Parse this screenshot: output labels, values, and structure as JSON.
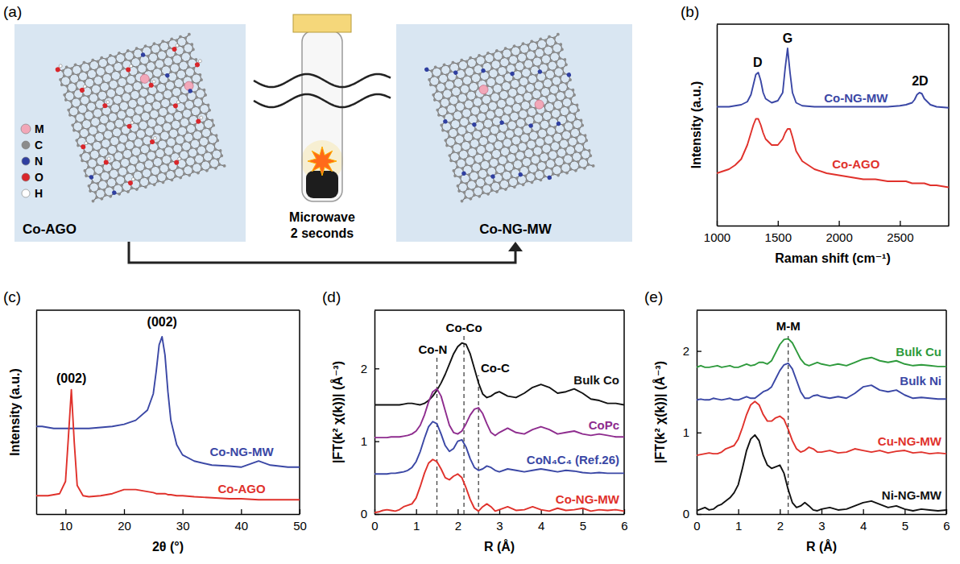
{
  "diagram": {
    "panel_label": "(a)",
    "before": "Co-AGO",
    "after": "Co-NG-MW",
    "process": [
      "Microwave",
      "2 seconds"
    ],
    "legend": [
      {
        "label": "M",
        "color": "#f2a7b8"
      },
      {
        "label": "C",
        "color": "#8c8c8c"
      },
      {
        "label": "N",
        "color": "#2f3fa0"
      },
      {
        "label": "O",
        "color": "#d9262b"
      },
      {
        "label": "H",
        "color": "#ffffff"
      }
    ]
  },
  "chart_data": [
    {
      "type": "line",
      "panel_label": "(b)",
      "xlabel": "Raman shift (cm⁻¹)",
      "ylabel": "Intensity (a.u.)",
      "x": [
        1000,
        1050,
        1100,
        1150,
        1200,
        1250,
        1280,
        1300,
        1320,
        1340,
        1360,
        1380,
        1400,
        1450,
        1500,
        1540,
        1560,
        1580,
        1600,
        1620,
        1650,
        1700,
        1800,
        1900,
        2000,
        2100,
        2200,
        2300,
        2400,
        2500,
        2550,
        2600,
        2620,
        2640,
        2660,
        2680,
        2700,
        2750,
        2800,
        2900
      ],
      "series": [
        {
          "name": "Co-NG-MW",
          "color": "#3a47a5",
          "values": [
            5.9,
            5.9,
            5.9,
            5.95,
            6.0,
            6.15,
            6.5,
            7.0,
            7.5,
            7.6,
            7.2,
            6.6,
            6.3,
            6.1,
            6.2,
            6.6,
            7.8,
            8.8,
            7.6,
            6.6,
            6.1,
            5.95,
            5.9,
            5.9,
            5.9,
            5.9,
            5.9,
            5.9,
            5.9,
            5.95,
            6.0,
            6.1,
            6.25,
            6.5,
            6.6,
            6.55,
            6.3,
            6.0,
            5.9,
            5.85
          ]
        },
        {
          "name": "Co-AGO",
          "color": "#e0312b",
          "values": [
            2.6,
            2.7,
            2.8,
            3.0,
            3.3,
            4.0,
            4.6,
            5.0,
            5.3,
            5.3,
            5.0,
            4.6,
            4.3,
            4.0,
            4.0,
            4.3,
            4.6,
            4.8,
            4.8,
            4.4,
            3.7,
            3.2,
            2.8,
            2.6,
            2.5,
            2.4,
            2.3,
            2.3,
            2.2,
            2.2,
            2.2,
            2.1,
            2.1,
            2.1,
            2.1,
            2.1,
            2.1,
            2.0,
            2.0,
            1.9
          ]
        }
      ],
      "xlim": [
        1000,
        2900
      ],
      "xticks": [
        1000,
        1500,
        2000,
        2500
      ],
      "ylim": [
        0,
        10
      ],
      "tick_labels": "x",
      "annotations": [
        {
          "text": "D",
          "x": 1335,
          "y": 7.9
        },
        {
          "text": "G",
          "x": 1580,
          "y": 9.1
        },
        {
          "text": "2D",
          "x": 2665,
          "y": 6.95
        }
      ]
    },
    {
      "type": "line",
      "panel_label": "(c)",
      "xlabel": "2θ (°)",
      "ylabel": "Intensity (a.u.)",
      "x": [
        5,
        6,
        7,
        8,
        9,
        10,
        10.5,
        11,
        11.5,
        12,
        13,
        14,
        16,
        18,
        20,
        22,
        24,
        25,
        25.5,
        26,
        26.5,
        27,
        27.5,
        28,
        29,
        30,
        32,
        35,
        38,
        40,
        43,
        45,
        48,
        50
      ],
      "series": [
        {
          "name": "Co-NG-MW",
          "color": "#3a47a5",
          "values": [
            4.3,
            4.3,
            4.25,
            4.2,
            4.2,
            4.2,
            4.2,
            4.2,
            4.2,
            4.2,
            4.2,
            4.2,
            4.25,
            4.3,
            4.4,
            4.6,
            5.1,
            5.9,
            7.0,
            8.3,
            8.7,
            7.8,
            6.0,
            4.6,
            3.4,
            2.9,
            2.6,
            2.4,
            2.35,
            2.3,
            2.6,
            2.4,
            2.3,
            2.3
          ]
        },
        {
          "name": "Co-AGO",
          "color": "#e0312b",
          "values": [
            0.9,
            0.9,
            0.9,
            0.95,
            1.0,
            1.6,
            3.8,
            6.1,
            3.5,
            1.4,
            0.9,
            0.85,
            0.9,
            1.0,
            1.2,
            1.2,
            1.1,
            1.05,
            1.0,
            1.0,
            1.0,
            1.0,
            0.95,
            0.95,
            0.9,
            0.9,
            0.85,
            0.8,
            0.75,
            0.75,
            0.7,
            0.7,
            0.7,
            0.7
          ]
        }
      ],
      "xlim": [
        5,
        50
      ],
      "xticks": [
        10,
        20,
        30,
        40,
        50
      ],
      "ylim": [
        0,
        10
      ],
      "tick_labels": "x",
      "annotations": [
        {
          "text": "(002)",
          "x": 26.5,
          "y": 9.2
        },
        {
          "text": "(002)",
          "x": 11,
          "y": 6.45
        }
      ]
    },
    {
      "type": "line",
      "panel_label": "(d)",
      "xlabel": "R (Å)",
      "ylabel": "|FT(k² χ(k))| (Å⁻³)",
      "x": [
        0,
        0.1,
        0.2,
        0.3,
        0.4,
        0.5,
        0.6,
        0.7,
        0.8,
        0.9,
        1,
        1.1,
        1.2,
        1.3,
        1.4,
        1.5,
        1.6,
        1.7,
        1.8,
        1.9,
        2,
        2.1,
        2.2,
        2.3,
        2.4,
        2.5,
        2.6,
        2.7,
        2.8,
        2.9,
        3,
        3.2,
        3.4,
        3.6,
        3.8,
        4,
        4.2,
        4.4,
        4.6,
        4.8,
        5,
        5.2,
        5.4,
        5.6,
        5.8,
        6
      ],
      "series": [
        {
          "name": "Bulk Co",
          "color": "#111111",
          "values": [
            1.5,
            1.5,
            1.5,
            1.5,
            1.5,
            1.5,
            1.5,
            1.51,
            1.52,
            1.52,
            1.51,
            1.5,
            1.52,
            1.56,
            1.62,
            1.7,
            1.8,
            1.92,
            2.06,
            2.2,
            2.3,
            2.35,
            2.33,
            2.2,
            2.0,
            1.8,
            1.65,
            1.6,
            1.62,
            1.66,
            1.68,
            1.62,
            1.6,
            1.66,
            1.74,
            1.78,
            1.74,
            1.66,
            1.68,
            1.72,
            1.66,
            1.58,
            1.56,
            1.52,
            1.52,
            1.5
          ]
        },
        {
          "name": "CoPc",
          "color": "#8e2c8e",
          "values": [
            1.05,
            1.05,
            1.05,
            1.05,
            1.06,
            1.06,
            1.06,
            1.07,
            1.08,
            1.1,
            1.14,
            1.22,
            1.36,
            1.54,
            1.68,
            1.72,
            1.62,
            1.42,
            1.22,
            1.12,
            1.1,
            1.14,
            1.24,
            1.36,
            1.44,
            1.46,
            1.38,
            1.24,
            1.12,
            1.08,
            1.12,
            1.18,
            1.12,
            1.1,
            1.16,
            1.2,
            1.16,
            1.1,
            1.12,
            1.14,
            1.1,
            1.08,
            1.1,
            1.08,
            1.06,
            1.06
          ]
        },
        {
          "name": "CoN₄C₄ (Ref.26)",
          "color": "#3a47a5",
          "values": [
            0.55,
            0.55,
            0.55,
            0.55,
            0.56,
            0.56,
            0.57,
            0.58,
            0.6,
            0.64,
            0.72,
            0.86,
            1.04,
            1.2,
            1.27,
            1.24,
            1.1,
            0.94,
            0.86,
            0.9,
            1.0,
            1.02,
            0.92,
            0.76,
            0.64,
            0.6,
            0.62,
            0.66,
            0.64,
            0.6,
            0.58,
            0.62,
            0.6,
            0.58,
            0.6,
            0.62,
            0.6,
            0.58,
            0.6,
            0.59,
            0.57,
            0.56,
            0.57,
            0.56,
            0.56,
            0.56
          ]
        },
        {
          "name": "Co-NG-MW",
          "color": "#e0312b",
          "values": [
            0.02,
            0.03,
            0.05,
            0.06,
            0.05,
            0.04,
            0.06,
            0.1,
            0.12,
            0.14,
            0.22,
            0.38,
            0.56,
            0.7,
            0.75,
            0.72,
            0.62,
            0.5,
            0.47,
            0.52,
            0.55,
            0.5,
            0.36,
            0.2,
            0.08,
            0.04,
            0.1,
            0.14,
            0.1,
            0.04,
            0.06,
            0.1,
            0.05,
            0.06,
            0.1,
            0.06,
            0.04,
            0.08,
            0.05,
            0.06,
            0.08,
            0.04,
            0.06,
            0.05,
            0.06,
            0.04
          ]
        }
      ],
      "xlim": [
        0,
        6
      ],
      "xticks": [
        0,
        1,
        2,
        3,
        4,
        5,
        6
      ],
      "ylim": [
        0,
        2.8
      ],
      "yticks": [
        0,
        1,
        2
      ],
      "vlines": [
        {
          "x": 1.5,
          "label": "Co-N",
          "label_x": 1.4,
          "label_y": 2.2
        },
        {
          "x": 2.15,
          "label": "Co-Co",
          "label_x": 2.15,
          "label_y": 2.5
        },
        {
          "x": 2.5,
          "label": "Co-C",
          "label_x": 2.9,
          "label_y": 1.95
        }
      ]
    },
    {
      "type": "line",
      "panel_label": "(e)",
      "xlabel": "R (Å)",
      "ylabel": "|FT(k² χ(k))| (Å⁻³)",
      "x": [
        0,
        0.1,
        0.2,
        0.3,
        0.4,
        0.5,
        0.6,
        0.7,
        0.8,
        0.9,
        1,
        1.1,
        1.2,
        1.3,
        1.4,
        1.5,
        1.6,
        1.7,
        1.8,
        1.9,
        2,
        2.1,
        2.2,
        2.3,
        2.4,
        2.5,
        2.6,
        2.7,
        2.8,
        2.9,
        3,
        3.2,
        3.4,
        3.6,
        3.8,
        4,
        4.2,
        4.4,
        4.6,
        4.8,
        5,
        5.2,
        5.4,
        5.6,
        5.8,
        6
      ],
      "series": [
        {
          "name": "Bulk Cu",
          "color": "#2e9a3c",
          "values": [
            1.8,
            1.82,
            1.8,
            1.8,
            1.81,
            1.82,
            1.8,
            1.81,
            1.82,
            1.8,
            1.8,
            1.82,
            1.84,
            1.82,
            1.83,
            1.86,
            1.86,
            1.84,
            1.88,
            1.98,
            2.08,
            2.14,
            2.15,
            2.1,
            2.0,
            1.9,
            1.84,
            1.82,
            1.84,
            1.86,
            1.84,
            1.82,
            1.84,
            1.82,
            1.86,
            1.9,
            1.92,
            1.88,
            1.86,
            1.88,
            1.84,
            1.82,
            1.83,
            1.82,
            1.81,
            1.81
          ]
        },
        {
          "name": "Bulk Ni",
          "color": "#3a47a5",
          "values": [
            1.4,
            1.41,
            1.4,
            1.4,
            1.42,
            1.41,
            1.4,
            1.41,
            1.42,
            1.4,
            1.4,
            1.42,
            1.44,
            1.42,
            1.42,
            1.46,
            1.5,
            1.52,
            1.56,
            1.66,
            1.76,
            1.83,
            1.85,
            1.78,
            1.64,
            1.5,
            1.42,
            1.42,
            1.45,
            1.46,
            1.44,
            1.42,
            1.44,
            1.42,
            1.48,
            1.56,
            1.58,
            1.52,
            1.5,
            1.52,
            1.46,
            1.42,
            1.43,
            1.42,
            1.41,
            1.41
          ]
        },
        {
          "name": "Cu-NG-MW",
          "color": "#e0312b",
          "values": [
            0.72,
            0.73,
            0.74,
            0.75,
            0.74,
            0.74,
            0.76,
            0.8,
            0.82,
            0.84,
            0.92,
            1.06,
            1.22,
            1.34,
            1.38,
            1.34,
            1.22,
            1.14,
            1.14,
            1.18,
            1.2,
            1.16,
            1.04,
            0.9,
            0.8,
            0.76,
            0.78,
            0.82,
            0.8,
            0.76,
            0.76,
            0.78,
            0.75,
            0.76,
            0.8,
            0.78,
            0.76,
            0.78,
            0.75,
            0.77,
            0.78,
            0.75,
            0.76,
            0.74,
            0.75,
            0.74
          ]
        },
        {
          "name": "Ni-NG-MW",
          "color": "#111111",
          "values": [
            0.04,
            0.06,
            0.08,
            0.05,
            0.06,
            0.1,
            0.12,
            0.16,
            0.2,
            0.26,
            0.36,
            0.56,
            0.78,
            0.92,
            0.97,
            0.9,
            0.72,
            0.6,
            0.56,
            0.58,
            0.6,
            0.5,
            0.3,
            0.14,
            0.08,
            0.1,
            0.14,
            0.1,
            0.05,
            0.04,
            0.06,
            0.08,
            0.05,
            0.06,
            0.1,
            0.14,
            0.16,
            0.12,
            0.08,
            0.1,
            0.06,
            0.04,
            0.06,
            0.05,
            0.04,
            0.05
          ]
        }
      ],
      "xlim": [
        0,
        6
      ],
      "xticks": [
        0,
        1,
        2,
        3,
        4,
        5,
        6
      ],
      "ylim": [
        0,
        2.5
      ],
      "yticks": [
        0,
        1,
        2
      ],
      "vlines": [
        {
          "x": 2.2,
          "label": "M-M",
          "label_x": 2.2,
          "label_y": 2.25
        }
      ]
    }
  ]
}
